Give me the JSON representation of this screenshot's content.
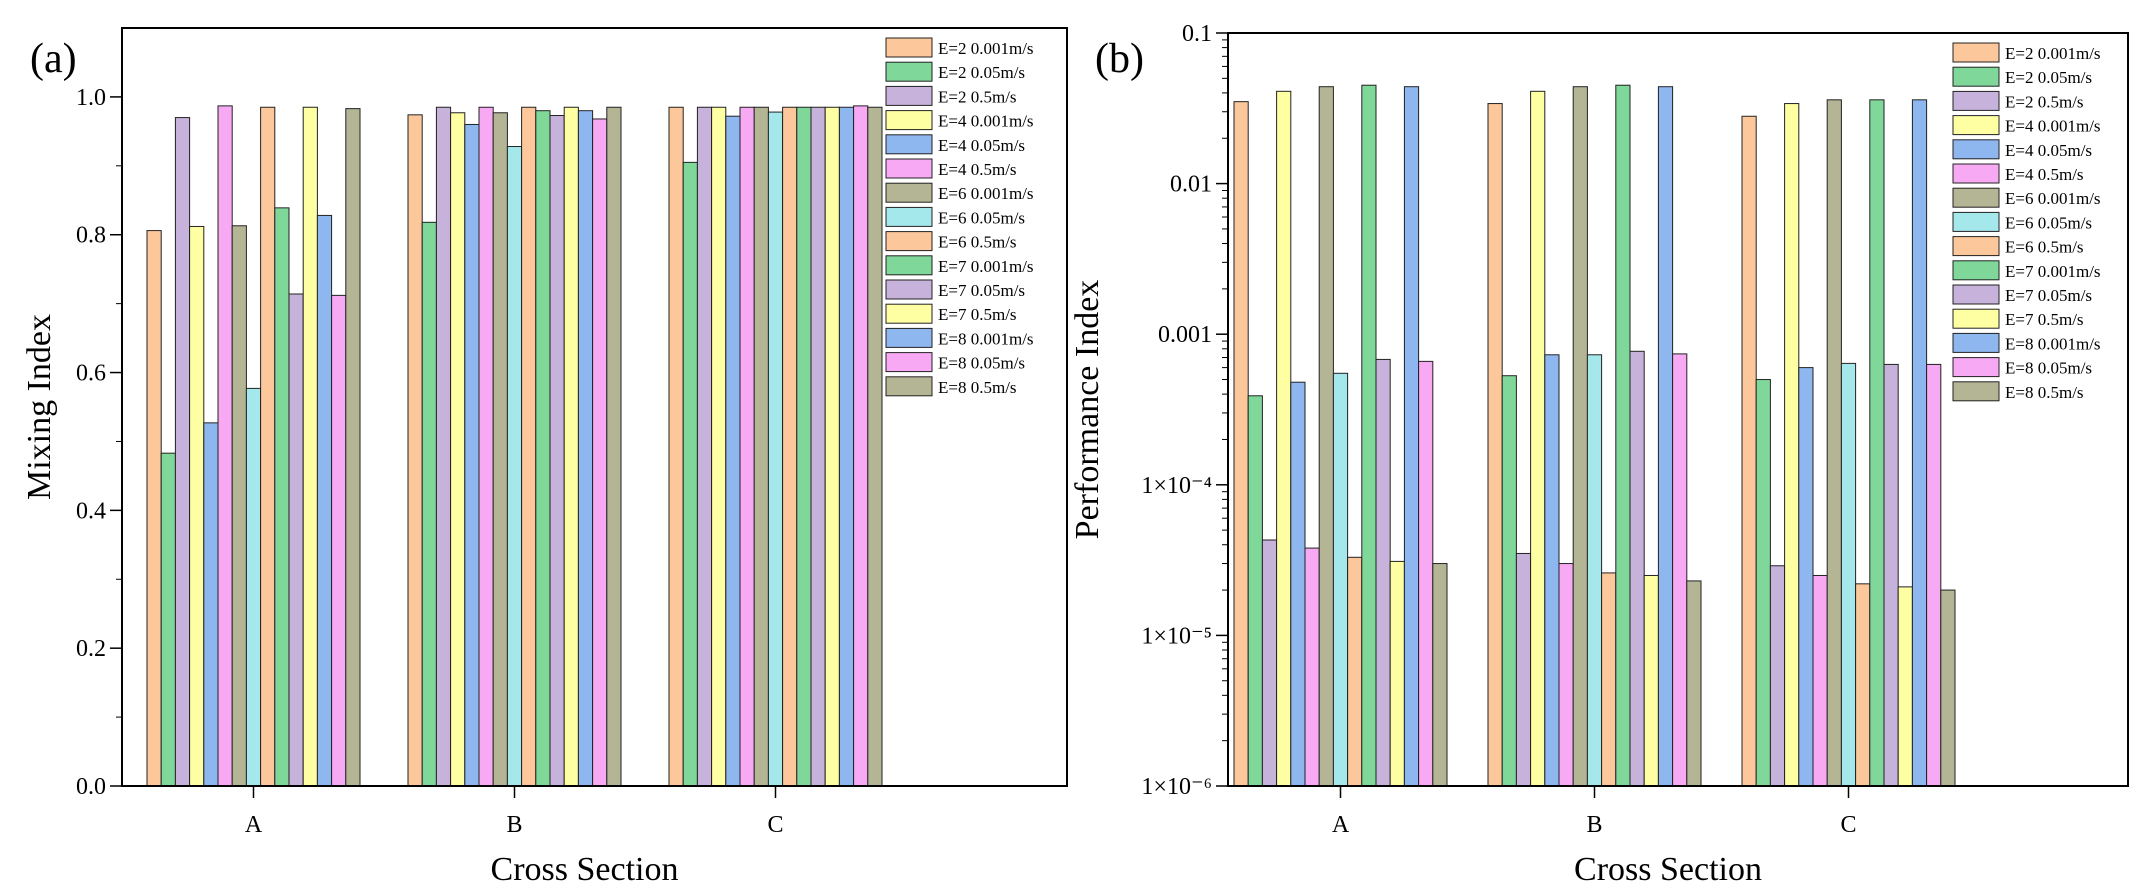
{
  "series_colors": [
    "#FCC79B",
    "#7FD79A",
    "#C6B2DA",
    "#FEFEA3",
    "#8EB7F0",
    "#F8A9F4",
    "#B4B594",
    "#A5E8EC",
    "#FCC79B",
    "#7FD79A",
    "#C6B2DA",
    "#FEFEA3",
    "#8EB7F0",
    "#F8A9F4",
    "#B4B594"
  ],
  "chart_data": [
    {
      "type": "bar",
      "panel_label": "(a)",
      "title": "",
      "xlabel": "Cross Section",
      "ylabel": "Mixing Index",
      "yscale": "linear",
      "ylim": [
        0,
        1.1
      ],
      "yticks": [
        0,
        0.2,
        0.4,
        0.6,
        0.8,
        1.0
      ],
      "ytick_labels": [
        "0.0",
        "0.2",
        "0.4",
        "0.6",
        "0.8",
        "1.0"
      ],
      "categories": [
        "A",
        "B",
        "C"
      ],
      "legend_position": "top-right",
      "series": [
        {
          "name": "E=2 0.001m/s",
          "values": [
            0.806,
            0.974,
            0.985
          ]
        },
        {
          "name": "E=2 0.05m/s",
          "values": [
            0.483,
            0.818,
            0.905
          ]
        },
        {
          "name": "E=2 0.5m/s",
          "values": [
            0.97,
            0.985,
            0.985
          ]
        },
        {
          "name": "E=4 0.001m/s",
          "values": [
            0.812,
            0.977,
            0.985
          ]
        },
        {
          "name": "E=4 0.05m/s",
          "values": [
            0.527,
            0.96,
            0.972
          ]
        },
        {
          "name": "E=4 0.5m/s",
          "values": [
            0.987,
            0.985,
            0.985
          ]
        },
        {
          "name": "E=6 0.001m/s",
          "values": [
            0.813,
            0.977,
            0.985
          ]
        },
        {
          "name": "E=6 0.05m/s",
          "values": [
            0.577,
            0.928,
            0.978
          ]
        },
        {
          "name": "E=6 0.5m/s",
          "values": [
            0.985,
            0.985,
            0.985
          ]
        },
        {
          "name": "E=7 0.001m/s",
          "values": [
            0.839,
            0.98,
            0.985
          ]
        },
        {
          "name": "E=7 0.05m/s",
          "values": [
            0.714,
            0.973,
            0.985
          ]
        },
        {
          "name": "E=7 0.5m/s",
          "values": [
            0.985,
            0.985,
            0.985
          ]
        },
        {
          "name": "E=8 0.001m/s",
          "values": [
            0.828,
            0.98,
            0.985
          ]
        },
        {
          "name": "E=8 0.05m/s",
          "values": [
            0.712,
            0.968,
            0.987
          ]
        },
        {
          "name": "E=8 0.5m/s",
          "values": [
            0.983,
            0.985,
            0.985
          ]
        }
      ]
    },
    {
      "type": "bar",
      "panel_label": "(b)",
      "title": "",
      "xlabel": "Cross Section",
      "ylabel": "Performance Index",
      "yscale": "log",
      "ylim": [
        1e-06,
        0.1
      ],
      "yticks": [
        1e-06,
        1e-05,
        0.0001,
        0.001,
        0.01,
        0.1
      ],
      "ytick_labels": [
        "1×10⁻⁶",
        "1×10⁻⁵",
        "1×10⁻⁴",
        "0.001",
        "0.01",
        "0.1"
      ],
      "categories": [
        "A",
        "B",
        "C"
      ],
      "legend_position": "top-right",
      "series": [
        {
          "name": "E=2 0.001m/s",
          "values": [
            0.035,
            0.034,
            0.028
          ]
        },
        {
          "name": "E=2 0.05m/s",
          "values": [
            0.00039,
            0.00053,
            0.0005
          ]
        },
        {
          "name": "E=2 0.5m/s",
          "values": [
            4.3e-05,
            3.5e-05,
            2.9e-05
          ]
        },
        {
          "name": "E=4 0.001m/s",
          "values": [
            0.041,
            0.041,
            0.034
          ]
        },
        {
          "name": "E=4 0.05m/s",
          "values": [
            0.00048,
            0.00073,
            0.0006
          ]
        },
        {
          "name": "E=4 0.5m/s",
          "values": [
            3.8e-05,
            3e-05,
            2.5e-05
          ]
        },
        {
          "name": "E=6 0.001m/s",
          "values": [
            0.044,
            0.044,
            0.036
          ]
        },
        {
          "name": "E=6 0.05m/s",
          "values": [
            0.00055,
            0.00073,
            0.00064
          ]
        },
        {
          "name": "E=6 0.5m/s",
          "values": [
            3.3e-05,
            2.6e-05,
            2.2e-05
          ]
        },
        {
          "name": "E=7 0.001m/s",
          "values": [
            0.045,
            0.045,
            0.036
          ]
        },
        {
          "name": "E=7 0.05m/s",
          "values": [
            0.00068,
            0.00077,
            0.00063
          ]
        },
        {
          "name": "E=7 0.5m/s",
          "values": [
            3.1e-05,
            2.5e-05,
            2.1e-05
          ]
        },
        {
          "name": "E=8 0.001m/s",
          "values": [
            0.044,
            0.044,
            0.036
          ]
        },
        {
          "name": "E=8 0.05m/s",
          "values": [
            0.00066,
            0.00074,
            0.00063
          ]
        },
        {
          "name": "E=8 0.5m/s",
          "values": [
            3e-05,
            2.3e-05,
            2e-05
          ]
        }
      ]
    }
  ]
}
